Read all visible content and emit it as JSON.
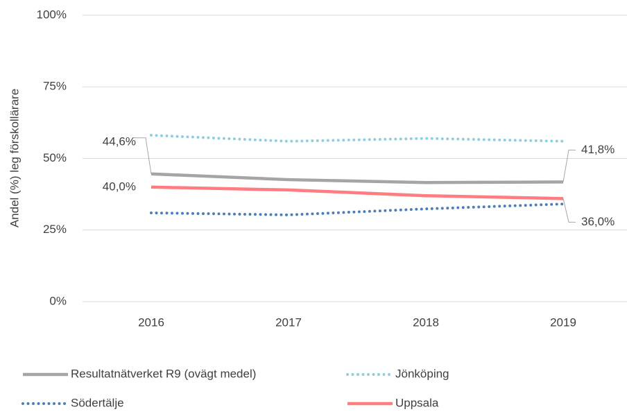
{
  "chart_data": {
    "type": "line",
    "y_label": "Andel (%) leg förskollärare",
    "categories": [
      "2016",
      "2017",
      "2018",
      "2019"
    ],
    "ylim": [
      0,
      100
    ],
    "yticks": [
      {
        "value": 0,
        "label": "0%"
      },
      {
        "value": 25,
        "label": "25%"
      },
      {
        "value": 50,
        "label": "50%"
      },
      {
        "value": 75,
        "label": "75%"
      },
      {
        "value": 100,
        "label": "100%"
      }
    ],
    "grid": true,
    "series": [
      {
        "name": "Resultatnätverket R9 (ovägt medel)",
        "color": "#a5a5a5",
        "style": "solid",
        "values": [
          44.6,
          42.6,
          41.6,
          41.8
        ],
        "value_labels": [
          "44,6%",
          null,
          null,
          "41,8%"
        ]
      },
      {
        "name": "Jönköping",
        "color": "#8fcde0",
        "style": "dotted",
        "values": [
          58.1,
          56,
          57,
          56
        ]
      },
      {
        "name": "Södertälje",
        "color": "#4a7ebb",
        "style": "dotted",
        "values": [
          31,
          30.3,
          32.4,
          34.1
        ]
      },
      {
        "name": "Uppsala",
        "color": "#ff7c80",
        "style": "solid",
        "values": [
          40,
          39,
          37,
          36
        ],
        "value_labels": [
          "40,0%",
          null,
          null,
          "36,0%"
        ]
      }
    ]
  }
}
